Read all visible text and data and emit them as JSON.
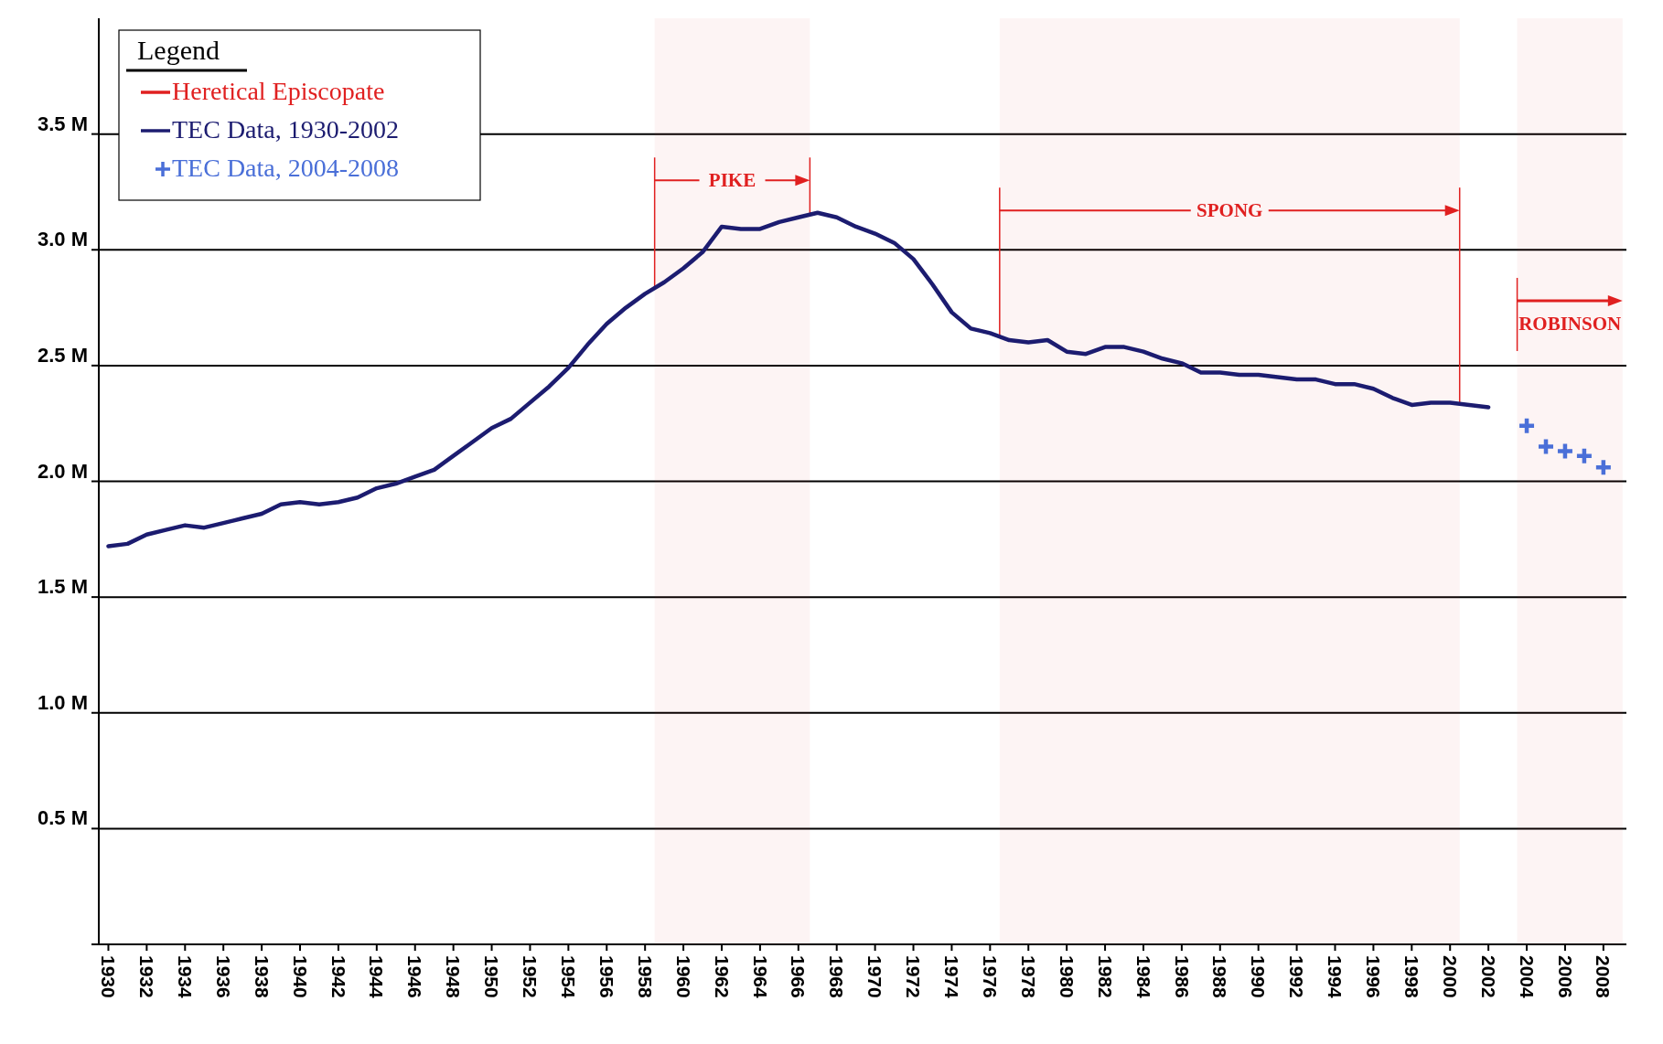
{
  "chart_data": {
    "type": "line",
    "legend_title": "Legend",
    "annotations": [
      "Heretical Episcopate"
    ],
    "xlim": [
      1929.5,
      2009.2
    ],
    "xticks": [
      1930,
      1932,
      1934,
      1936,
      1938,
      1940,
      1942,
      1944,
      1946,
      1948,
      1950,
      1952,
      1954,
      1956,
      1958,
      1960,
      1962,
      1964,
      1966,
      1968,
      1970,
      1972,
      1974,
      1976,
      1978,
      1980,
      1982,
      1984,
      1986,
      1988,
      1990,
      1992,
      1994,
      1996,
      1998,
      2000,
      2002,
      2004,
      2006,
      2008
    ],
    "ylim": [
      0,
      4.0
    ],
    "yticks": [
      {
        "value": 0.5,
        "label": "0.5 M"
      },
      {
        "value": 1.0,
        "label": "1.0 M"
      },
      {
        "value": 1.5,
        "label": "1.5 M"
      },
      {
        "value": 2.0,
        "label": "2.0 M"
      },
      {
        "value": 2.5,
        "label": "2.5 M"
      },
      {
        "value": 3.0,
        "label": "3.0 M"
      },
      {
        "value": 3.5,
        "label": "3.5 M"
      }
    ],
    "grid": "y",
    "legend": "top left",
    "series": [
      {
        "name": "TEC Data, 1930-2002",
        "color": "#1c1c70",
        "x": [
          1930,
          1931,
          1932,
          1933,
          1934,
          1935,
          1936,
          1937,
          1938,
          1939,
          1940,
          1941,
          1942,
          1943,
          1944,
          1945,
          1946,
          1947,
          1948,
          1949,
          1950,
          1951,
          1952,
          1953,
          1954,
          1955,
          1956,
          1957,
          1958,
          1959,
          1960,
          1961,
          1962,
          1963,
          1964,
          1965,
          1966,
          1967,
          1968,
          1969,
          1970,
          1971,
          1972,
          1973,
          1974,
          1975,
          1976,
          1977,
          1978,
          1979,
          1980,
          1981,
          1982,
          1983,
          1984,
          1985,
          1986,
          1987,
          1988,
          1989,
          1990,
          1991,
          1992,
          1993,
          1994,
          1995,
          1996,
          1997,
          1998,
          1999,
          2000,
          2001,
          2002
        ],
        "values": [
          1.72,
          1.73,
          1.77,
          1.79,
          1.81,
          1.8,
          1.82,
          1.84,
          1.86,
          1.9,
          1.91,
          1.9,
          1.91,
          1.93,
          1.97,
          1.99,
          2.02,
          2.05,
          2.11,
          2.17,
          2.23,
          2.27,
          2.34,
          2.41,
          2.49,
          2.59,
          2.68,
          2.75,
          2.81,
          2.86,
          2.92,
          2.99,
          3.1,
          3.09,
          3.09,
          3.12,
          3.14,
          3.16,
          3.14,
          3.1,
          3.07,
          3.03,
          2.96,
          2.85,
          2.73,
          2.66,
          2.64,
          2.61,
          2.6,
          2.61,
          2.56,
          2.55,
          2.58,
          2.58,
          2.56,
          2.53,
          2.51,
          2.47,
          2.47,
          2.46,
          2.46,
          2.45,
          2.44,
          2.44,
          2.42,
          2.42,
          2.4,
          2.36,
          2.33,
          2.34,
          2.34,
          2.33,
          2.32
        ]
      },
      {
        "name": "TEC Data, 2004-2008",
        "type": "scatter",
        "marker": "cross",
        "color": "#4a6fd8",
        "x": [
          2004,
          2005,
          2006,
          2007,
          2008
        ],
        "values": [
          2.24,
          2.15,
          2.13,
          2.11,
          2.06
        ]
      }
    ],
    "bands": [
      {
        "axis": "x",
        "from": 1958.5,
        "to": 1966.6,
        "label": "PIKE",
        "color": "#e02020"
      },
      {
        "axis": "x",
        "from": 1976.5,
        "to": 2000.5,
        "label": "SPONG",
        "color": "#e02020"
      },
      {
        "axis": "x",
        "from": 2003.5,
        "to": 2009,
        "label": "ROBINSON",
        "color": "#e02020"
      }
    ]
  }
}
